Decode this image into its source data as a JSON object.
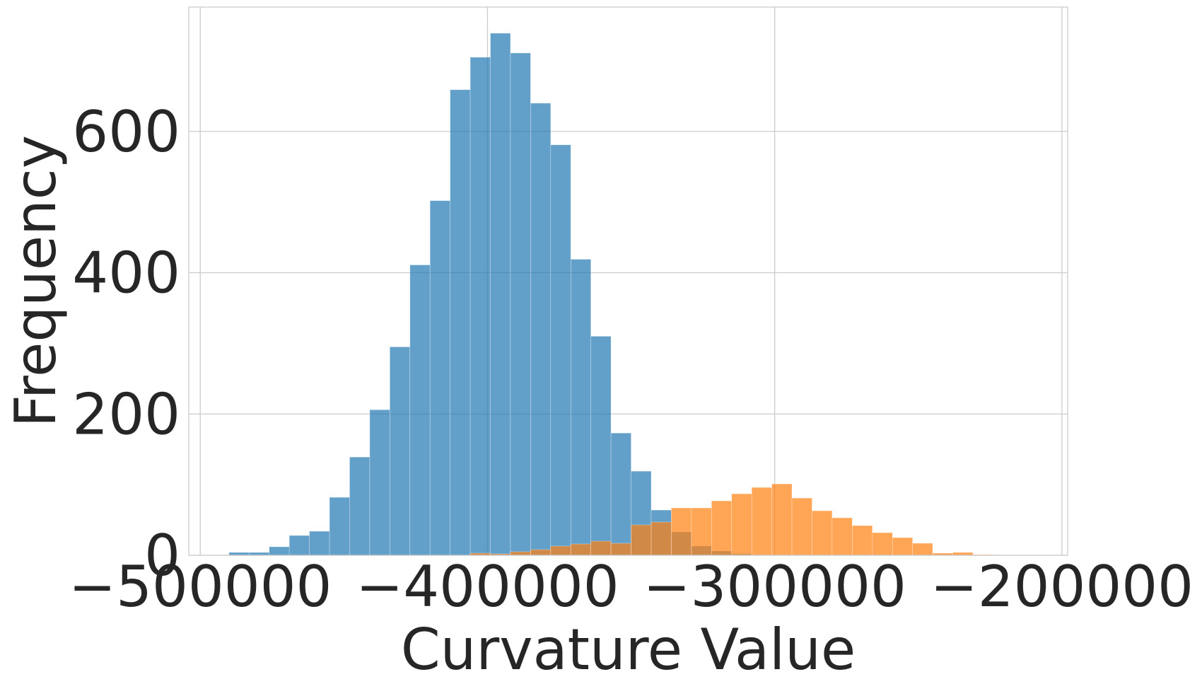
{
  "chart_data": {
    "type": "bar",
    "subtype": "overlapping-histogram",
    "xlabel": "Curvature Value",
    "ylabel": "Frequency",
    "xlim": [
      -504000,
      -198000
    ],
    "ylim": [
      0,
      776
    ],
    "x_ticks": [
      -500000,
      -400000,
      -300000,
      -200000
    ],
    "x_tick_labels": [
      "−500000",
      "−400000",
      "−300000",
      "−200000"
    ],
    "y_ticks": [
      0,
      200,
      400,
      600
    ],
    "y_tick_labels": [
      "0",
      "200",
      "400",
      "600"
    ],
    "grid": true,
    "legend": "none",
    "series": [
      {
        "color": "#1f77b4",
        "opacity": 0.7,
        "bins": [
          {
            "x0": -490000,
            "x1": -483000,
            "count": 4
          },
          {
            "x0": -483000,
            "x1": -476000,
            "count": 4
          },
          {
            "x0": -476000,
            "x1": -469000,
            "count": 12
          },
          {
            "x0": -469000,
            "x1": -462000,
            "count": 28
          },
          {
            "x0": -462000,
            "x1": -455000,
            "count": 34
          },
          {
            "x0": -455000,
            "x1": -448000,
            "count": 82
          },
          {
            "x0": -448000,
            "x1": -441000,
            "count": 139
          },
          {
            "x0": -441000,
            "x1": -434000,
            "count": 206
          },
          {
            "x0": -434000,
            "x1": -427000,
            "count": 295
          },
          {
            "x0": -427000,
            "x1": -420000,
            "count": 411
          },
          {
            "x0": -420000,
            "x1": -413000,
            "count": 502
          },
          {
            "x0": -413000,
            "x1": -406000,
            "count": 659
          },
          {
            "x0": -406000,
            "x1": -399000,
            "count": 705
          },
          {
            "x0": -399000,
            "x1": -392000,
            "count": 739
          },
          {
            "x0": -392000,
            "x1": -385000,
            "count": 711
          },
          {
            "x0": -385000,
            "x1": -378000,
            "count": 640
          },
          {
            "x0": -378000,
            "x1": -371000,
            "count": 581
          },
          {
            "x0": -371000,
            "x1": -364000,
            "count": 419
          },
          {
            "x0": -364000,
            "x1": -357000,
            "count": 310
          },
          {
            "x0": -357000,
            "x1": -350000,
            "count": 173
          },
          {
            "x0": -350000,
            "x1": -343000,
            "count": 119
          },
          {
            "x0": -343000,
            "x1": -336000,
            "count": 64
          },
          {
            "x0": -336000,
            "x1": -329000,
            "count": 33
          },
          {
            "x0": -329000,
            "x1": -322000,
            "count": 13
          },
          {
            "x0": -322000,
            "x1": -315000,
            "count": 6
          },
          {
            "x0": -315000,
            "x1": -308000,
            "count": 2
          }
        ]
      },
      {
        "color": "#ff7f0e",
        "opacity": 0.7,
        "bins": [
          {
            "x0": -406000,
            "x1": -399000,
            "count": 3
          },
          {
            "x0": -399000,
            "x1": -392000,
            "count": 2
          },
          {
            "x0": -392000,
            "x1": -385000,
            "count": 5
          },
          {
            "x0": -385000,
            "x1": -378000,
            "count": 8
          },
          {
            "x0": -378000,
            "x1": -371000,
            "count": 13
          },
          {
            "x0": -371000,
            "x1": -364000,
            "count": 16
          },
          {
            "x0": -364000,
            "x1": -357000,
            "count": 20
          },
          {
            "x0": -357000,
            "x1": -350000,
            "count": 17
          },
          {
            "x0": -350000,
            "x1": -343000,
            "count": 43
          },
          {
            "x0": -343000,
            "x1": -336000,
            "count": 47
          },
          {
            "x0": -336000,
            "x1": -329000,
            "count": 67
          },
          {
            "x0": -329000,
            "x1": -322000,
            "count": 67
          },
          {
            "x0": -322000,
            "x1": -315000,
            "count": 77
          },
          {
            "x0": -315000,
            "x1": -308000,
            "count": 87
          },
          {
            "x0": -308000,
            "x1": -301000,
            "count": 96
          },
          {
            "x0": -301000,
            "x1": -294000,
            "count": 101
          },
          {
            "x0": -294000,
            "x1": -287000,
            "count": 81
          },
          {
            "x0": -287000,
            "x1": -280000,
            "count": 63
          },
          {
            "x0": -280000,
            "x1": -273000,
            "count": 53
          },
          {
            "x0": -273000,
            "x1": -266000,
            "count": 42
          },
          {
            "x0": -266000,
            "x1": -259000,
            "count": 32
          },
          {
            "x0": -259000,
            "x1": -252000,
            "count": 25
          },
          {
            "x0": -252000,
            "x1": -245000,
            "count": 17
          },
          {
            "x0": -245000,
            "x1": -238000,
            "count": 3
          },
          {
            "x0": -238000,
            "x1": -231000,
            "count": 4
          },
          {
            "x0": -231000,
            "x1": -224000,
            "count": 1
          }
        ]
      }
    ]
  }
}
